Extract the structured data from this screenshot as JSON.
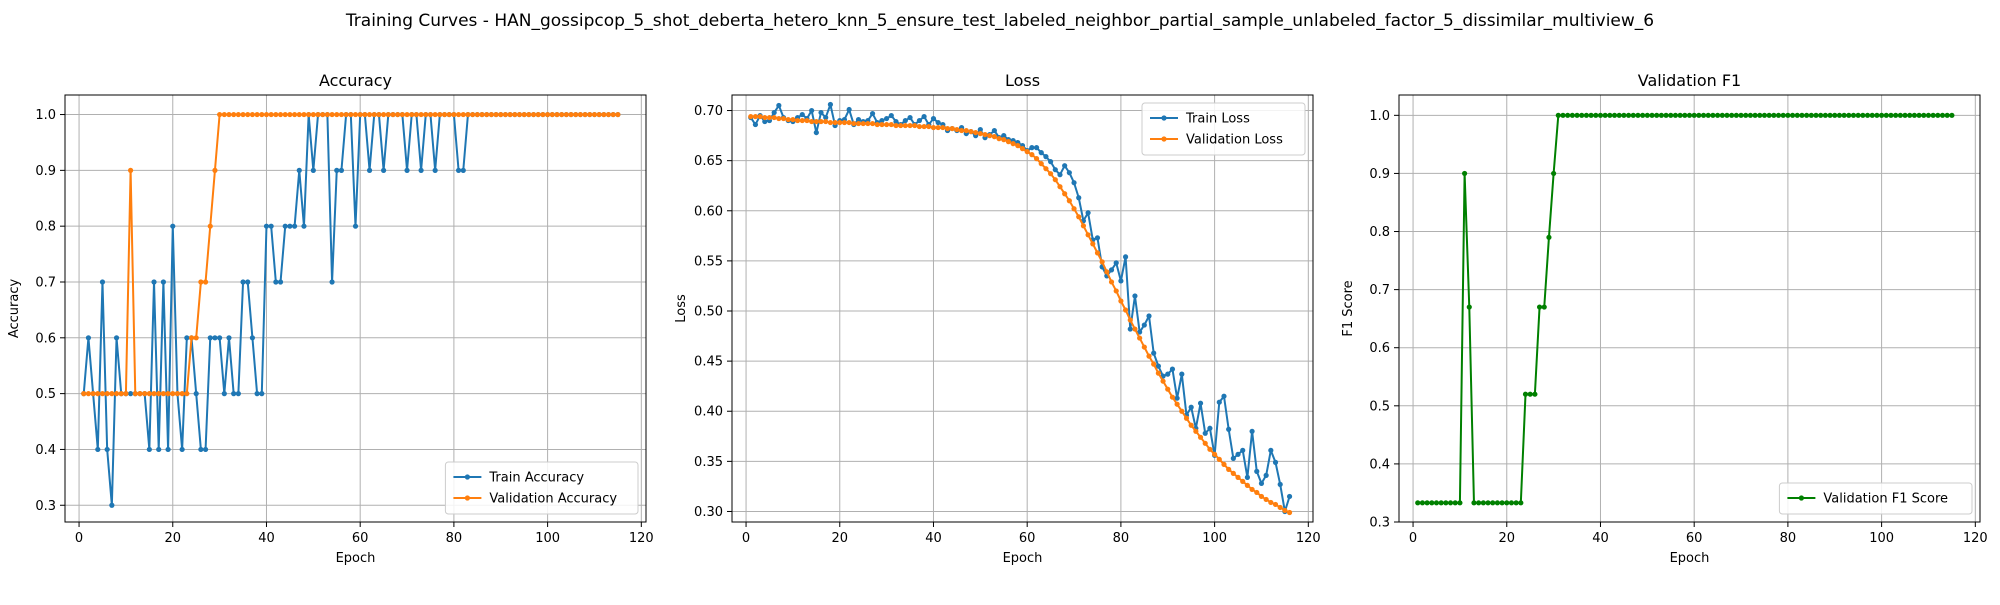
{
  "figure": {
    "title": "Training Curves - HAN_gossipcop_5_shot_deberta_hetero_knn_5_ensure_test_labeled_neighbor_partial_sample_unlabeled_factor_5_dissimilar_multiview_6"
  },
  "chart_data": [
    {
      "type": "line",
      "title": "Accuracy",
      "xlabel": "Epoch",
      "ylabel": "Accuracy",
      "xlim": [
        -3,
        121
      ],
      "ylim": [
        0.27,
        1.035
      ],
      "xticks": [
        0,
        20,
        40,
        60,
        80,
        100,
        120
      ],
      "yticks": [
        0.3,
        0.4,
        0.5,
        0.6,
        0.7,
        0.8,
        0.9,
        1.0
      ],
      "ytick_format": 1,
      "grid": true,
      "legend": "lower-right",
      "x_start": 1,
      "series": [
        {
          "name": "Train Accuracy",
          "color": "#1f77b4",
          "values": [
            0.5,
            0.6,
            0.5,
            0.4,
            0.7,
            0.4,
            0.3,
            0.6,
            0.5,
            0.5,
            0.5,
            0.5,
            0.5,
            0.5,
            0.4,
            0.7,
            0.4,
            0.7,
            0.4,
            0.8,
            0.5,
            0.4,
            0.6,
            0.6,
            0.5,
            0.4,
            0.4,
            0.6,
            0.6,
            0.6,
            0.5,
            0.6,
            0.5,
            0.5,
            0.7,
            0.7,
            0.6,
            0.5,
            0.5,
            0.8,
            0.8,
            0.7,
            0.7,
            0.8,
            0.8,
            0.8,
            0.9,
            0.8,
            1.0,
            0.9,
            1.0,
            1.0,
            1.0,
            0.7,
            0.9,
            0.9,
            1.0,
            1.0,
            0.8,
            1.0,
            1.0,
            0.9,
            1.0,
            1.0,
            0.9,
            1.0,
            1.0,
            1.0,
            1.0,
            0.9,
            1.0,
            1.0,
            0.9,
            1.0,
            1.0,
            0.9,
            1.0,
            1.0,
            1.0,
            1.0,
            0.9,
            0.9,
            1.0,
            1.0,
            1.0,
            1.0,
            1.0,
            1.0,
            1.0,
            1.0,
            1.0,
            1.0,
            1.0,
            1.0,
            1.0,
            1.0,
            1.0,
            1.0,
            1.0,
            1.0,
            1.0,
            1.0,
            1.0,
            1.0,
            1.0,
            1.0,
            1.0,
            1.0,
            1.0,
            1.0,
            1.0,
            1.0,
            1.0,
            1.0,
            1.0
          ]
        },
        {
          "name": "Validation Accuracy",
          "color": "#ff7f0e",
          "values": [
            0.5,
            0.5,
            0.5,
            0.5,
            0.5,
            0.5,
            0.5,
            0.5,
            0.5,
            0.5,
            0.9,
            0.5,
            0.5,
            0.5,
            0.5,
            0.5,
            0.5,
            0.5,
            0.5,
            0.5,
            0.5,
            0.5,
            0.5,
            0.6,
            0.6,
            0.7,
            0.7,
            0.8,
            0.9,
            1.0,
            1.0,
            1.0,
            1.0,
            1.0,
            1.0,
            1.0,
            1.0,
            1.0,
            1.0,
            1.0,
            1.0,
            1.0,
            1.0,
            1.0,
            1.0,
            1.0,
            1.0,
            1.0,
            1.0,
            1.0,
            1.0,
            1.0,
            1.0,
            1.0,
            1.0,
            1.0,
            1.0,
            1.0,
            1.0,
            1.0,
            1.0,
            1.0,
            1.0,
            1.0,
            1.0,
            1.0,
            1.0,
            1.0,
            1.0,
            1.0,
            1.0,
            1.0,
            1.0,
            1.0,
            1.0,
            1.0,
            1.0,
            1.0,
            1.0,
            1.0,
            1.0,
            1.0,
            1.0,
            1.0,
            1.0,
            1.0,
            1.0,
            1.0,
            1.0,
            1.0,
            1.0,
            1.0,
            1.0,
            1.0,
            1.0,
            1.0,
            1.0,
            1.0,
            1.0,
            1.0,
            1.0,
            1.0,
            1.0,
            1.0,
            1.0,
            1.0,
            1.0,
            1.0,
            1.0,
            1.0,
            1.0,
            1.0,
            1.0,
            1.0,
            1.0
          ]
        }
      ]
    },
    {
      "type": "line",
      "title": "Loss",
      "xlabel": "Epoch",
      "ylabel": "Loss",
      "xlim": [
        -3,
        121
      ],
      "ylim": [
        0.2895,
        0.7155
      ],
      "xticks": [
        0,
        20,
        40,
        60,
        80,
        100,
        120
      ],
      "yticks": [
        0.3,
        0.35,
        0.4,
        0.45,
        0.5,
        0.55,
        0.6,
        0.65,
        0.7
      ],
      "ytick_format": 2,
      "grid": true,
      "legend": "top-right",
      "x_start": 1,
      "series": [
        {
          "name": "Train Loss",
          "color": "#1f77b4",
          "values": [
            0.693,
            0.686,
            0.695,
            0.689,
            0.69,
            0.698,
            0.705,
            0.693,
            0.69,
            0.689,
            0.693,
            0.696,
            0.692,
            0.7,
            0.678,
            0.698,
            0.693,
            0.706,
            0.685,
            0.69,
            0.691,
            0.701,
            0.686,
            0.691,
            0.689,
            0.69,
            0.697,
            0.688,
            0.69,
            0.692,
            0.695,
            0.689,
            0.686,
            0.69,
            0.693,
            0.686,
            0.69,
            0.694,
            0.686,
            0.692,
            0.688,
            0.686,
            0.68,
            0.682,
            0.68,
            0.683,
            0.677,
            0.679,
            0.675,
            0.681,
            0.673,
            0.676,
            0.68,
            0.673,
            0.675,
            0.671,
            0.67,
            0.668,
            0.665,
            0.66,
            0.663,
            0.663,
            0.658,
            0.654,
            0.649,
            0.641,
            0.636,
            0.645,
            0.638,
            0.628,
            0.613,
            0.59,
            0.598,
            0.571,
            0.573,
            0.544,
            0.535,
            0.541,
            0.548,
            0.53,
            0.554,
            0.482,
            0.515,
            0.479,
            0.486,
            0.495,
            0.458,
            0.445,
            0.435,
            0.437,
            0.442,
            0.413,
            0.437,
            0.396,
            0.404,
            0.383,
            0.408,
            0.378,
            0.383,
            0.356,
            0.409,
            0.415,
            0.382,
            0.353,
            0.357,
            0.361,
            0.334,
            0.38,
            0.34,
            0.328,
            0.336,
            0.361,
            0.349,
            0.327,
            0.3,
            0.315
          ]
        },
        {
          "name": "Validation Loss",
          "color": "#ff7f0e",
          "values": [
            0.694,
            0.694,
            0.694,
            0.693,
            0.693,
            0.693,
            0.692,
            0.692,
            0.691,
            0.691,
            0.69,
            0.69,
            0.69,
            0.689,
            0.689,
            0.689,
            0.689,
            0.688,
            0.688,
            0.688,
            0.688,
            0.688,
            0.687,
            0.687,
            0.687,
            0.687,
            0.687,
            0.686,
            0.686,
            0.686,
            0.686,
            0.685,
            0.685,
            0.685,
            0.685,
            0.685,
            0.684,
            0.684,
            0.684,
            0.683,
            0.683,
            0.683,
            0.682,
            0.682,
            0.681,
            0.68,
            0.68,
            0.679,
            0.678,
            0.677,
            0.676,
            0.675,
            0.674,
            0.672,
            0.671,
            0.669,
            0.667,
            0.665,
            0.662,
            0.659,
            0.656,
            0.652,
            0.647,
            0.642,
            0.637,
            0.631,
            0.624,
            0.617,
            0.61,
            0.602,
            0.594,
            0.585,
            0.576,
            0.567,
            0.558,
            0.549,
            0.539,
            0.529,
            0.52,
            0.51,
            0.501,
            0.491,
            0.482,
            0.473,
            0.464,
            0.455,
            0.447,
            0.438,
            0.43,
            0.422,
            0.414,
            0.407,
            0.4,
            0.393,
            0.386,
            0.38,
            0.374,
            0.368,
            0.362,
            0.357,
            0.352,
            0.347,
            0.342,
            0.338,
            0.334,
            0.33,
            0.326,
            0.322,
            0.319,
            0.315,
            0.312,
            0.309,
            0.307,
            0.304,
            0.301,
            0.299
          ]
        }
      ]
    },
    {
      "type": "line",
      "title": "Validation F1",
      "xlabel": "Epoch",
      "ylabel": "F1 Score",
      "xlim": [
        -3,
        121
      ],
      "ylim": [
        0.3,
        1.035
      ],
      "xticks": [
        0,
        20,
        40,
        60,
        80,
        100,
        120
      ],
      "yticks": [
        0.3,
        0.4,
        0.5,
        0.6,
        0.7,
        0.8,
        0.9,
        1.0
      ],
      "ytick_format": 1,
      "grid": true,
      "legend": "lower-right",
      "x_start": 1,
      "series": [
        {
          "name": "Validation F1 Score",
          "color": "#008000",
          "values": [
            0.333,
            0.333,
            0.333,
            0.333,
            0.333,
            0.333,
            0.333,
            0.333,
            0.333,
            0.333,
            0.9,
            0.67,
            0.333,
            0.333,
            0.333,
            0.333,
            0.333,
            0.333,
            0.333,
            0.333,
            0.333,
            0.333,
            0.333,
            0.52,
            0.52,
            0.52,
            0.67,
            0.67,
            0.79,
            0.9,
            1.0,
            1.0,
            1.0,
            1.0,
            1.0,
            1.0,
            1.0,
            1.0,
            1.0,
            1.0,
            1.0,
            1.0,
            1.0,
            1.0,
            1.0,
            1.0,
            1.0,
            1.0,
            1.0,
            1.0,
            1.0,
            1.0,
            1.0,
            1.0,
            1.0,
            1.0,
            1.0,
            1.0,
            1.0,
            1.0,
            1.0,
            1.0,
            1.0,
            1.0,
            1.0,
            1.0,
            1.0,
            1.0,
            1.0,
            1.0,
            1.0,
            1.0,
            1.0,
            1.0,
            1.0,
            1.0,
            1.0,
            1.0,
            1.0,
            1.0,
            1.0,
            1.0,
            1.0,
            1.0,
            1.0,
            1.0,
            1.0,
            1.0,
            1.0,
            1.0,
            1.0,
            1.0,
            1.0,
            1.0,
            1.0,
            1.0,
            1.0,
            1.0,
            1.0,
            1.0,
            1.0,
            1.0,
            1.0,
            1.0,
            1.0,
            1.0,
            1.0,
            1.0,
            1.0,
            1.0,
            1.0,
            1.0,
            1.0,
            1.0,
            1.0
          ]
        }
      ]
    }
  ]
}
